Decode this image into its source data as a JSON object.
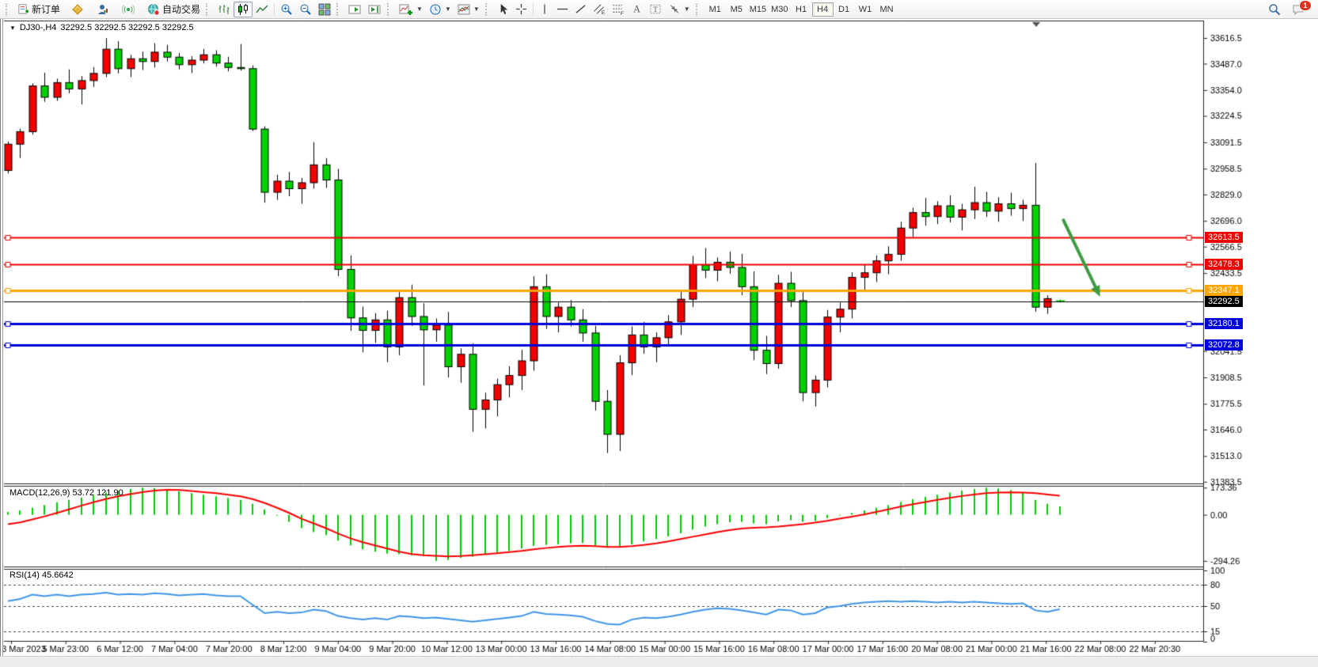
{
  "toolbar": {
    "new_order_label": "新订单",
    "autotrading_label": "自动交易",
    "timeframes": [
      "M1",
      "M5",
      "M15",
      "M30",
      "H1",
      "H4",
      "D1",
      "W1",
      "MN"
    ],
    "active_timeframe": "H4",
    "notification_count": "1"
  },
  "chart_header": {
    "symbol": "DJ30-,H4",
    "quotes": "32292.5 32292.5 32292.5 32292.5"
  },
  "indicators_text": {
    "macd_label": "MACD(12,26,9)",
    "macd_values": "53.72 121.90",
    "rsi_label": "RSI(14)",
    "rsi_value": "45.6642"
  },
  "chart_data": {
    "type": "candlestick",
    "symbol": "DJ30-",
    "timeframe": "H4",
    "bull_color": "#f40000",
    "bear_color": "#00d200",
    "current_price": 32292.5,
    "ylim": [
      31375,
      33704
    ],
    "price_ticks": [
      "33616.5",
      "33487.0",
      "33354.0",
      "33224.5",
      "33091.5",
      "32958.5",
      "32829.0",
      "32696.0",
      "32566.5",
      "32433.5",
      "32041.5",
      "31908.5",
      "31775.5",
      "31646.0",
      "31513.0",
      "31383.5"
    ],
    "x_labels": [
      "3 Mar 2023",
      "5 Mar 23:00",
      "6 Mar 12:00",
      "7 Mar 04:00",
      "7 Mar 20:00",
      "8 Mar 12:00",
      "9 Mar 04:00",
      "9 Mar 20:00",
      "10 Mar 12:00",
      "13 Mar 00:00",
      "13 Mar 16:00",
      "14 Mar 08:00",
      "15 Mar 00:00",
      "15 Mar 16:00",
      "16 Mar 08:00",
      "17 Mar 00:00",
      "17 Mar 16:00",
      "20 Mar 08:00",
      "21 Mar 00:00",
      "21 Mar 16:00",
      "22 Mar 08:00",
      "22 Mar 20:30"
    ],
    "hlines": [
      {
        "price": 32613.5,
        "label": "32613.5",
        "color": "#f00000",
        "width": 2,
        "handles": true
      },
      {
        "price": 32478.3,
        "label": "32478.3",
        "color": "#f00000",
        "width": 2,
        "handles": true
      },
      {
        "price": 32347.1,
        "label": "32347.1",
        "color": "#ffa500",
        "width": 3,
        "handles": true
      },
      {
        "price": 32292.5,
        "label": "32292.5",
        "color": "#000000",
        "width": 1,
        "handles": false
      },
      {
        "price": 32180.1,
        "label": "32180.1",
        "color": "#0000dc",
        "width": 3,
        "handles": true
      },
      {
        "price": 32072.8,
        "label": "32072.8",
        "color": "#0000dc",
        "width": 3,
        "handles": true
      }
    ],
    "annotations": {
      "arrow": {
        "from_i": 86.3,
        "from_price": 32700,
        "to_i": 89.3,
        "to_price": 32315,
        "color": "#3f9c43"
      }
    },
    "candles": [
      [
        32950,
        33095,
        32935,
        33082
      ],
      [
        33082,
        33160,
        33012,
        33145
      ],
      [
        33145,
        33388,
        33130,
        33375
      ],
      [
        33375,
        33442,
        33295,
        33318
      ],
      [
        33318,
        33412,
        33300,
        33392
      ],
      [
        33392,
        33458,
        33338,
        33360
      ],
      [
        33360,
        33425,
        33282,
        33402
      ],
      [
        33402,
        33470,
        33370,
        33438
      ],
      [
        33438,
        33616,
        33420,
        33560
      ],
      [
        33560,
        33600,
        33438,
        33462
      ],
      [
        33462,
        33532,
        33420,
        33512
      ],
      [
        33512,
        33548,
        33455,
        33498
      ],
      [
        33498,
        33590,
        33468,
        33545
      ],
      [
        33545,
        33582,
        33498,
        33520
      ],
      [
        33520,
        33542,
        33458,
        33482
      ],
      [
        33482,
        33525,
        33440,
        33505
      ],
      [
        33505,
        33562,
        33488,
        33532
      ],
      [
        33532,
        33555,
        33472,
        33490
      ],
      [
        33490,
        33522,
        33448,
        33468
      ],
      [
        33468,
        33586,
        33452,
        33462
      ],
      [
        33462,
        33478,
        33148,
        33158
      ],
      [
        33158,
        33172,
        32788,
        32840
      ],
      [
        32840,
        32928,
        32802,
        32896
      ],
      [
        32896,
        32942,
        32820,
        32858
      ],
      [
        32858,
        32912,
        32782,
        32888
      ],
      [
        32888,
        33092,
        32858,
        32978
      ],
      [
        32978,
        33012,
        32862,
        32902
      ],
      [
        32902,
        32958,
        32418,
        32452
      ],
      [
        32452,
        32522,
        32142,
        32208
      ],
      [
        32208,
        32265,
        32035,
        32145
      ],
      [
        32145,
        32232,
        32082,
        32198
      ],
      [
        32198,
        32245,
        31985,
        32062
      ],
      [
        32062,
        32348,
        32020,
        32310
      ],
      [
        32310,
        32375,
        32168,
        32215
      ],
      [
        32215,
        32282,
        31868,
        32148
      ],
      [
        32148,
        32205,
        32088,
        32172
      ],
      [
        32172,
        32238,
        31908,
        31962
      ],
      [
        31962,
        32055,
        31882,
        32025
      ],
      [
        32025,
        32080,
        31635,
        31748
      ],
      [
        31748,
        31832,
        31652,
        31795
      ],
      [
        31795,
        31902,
        31712,
        31872
      ],
      [
        31872,
        31965,
        31808,
        31918
      ],
      [
        31918,
        32048,
        31845,
        31992
      ],
      [
        31992,
        32418,
        31942,
        32365
      ],
      [
        32365,
        32428,
        32152,
        32215
      ],
      [
        32215,
        32285,
        32135,
        32262
      ],
      [
        32262,
        32298,
        32165,
        32198
      ],
      [
        32198,
        32252,
        32088,
        32132
      ],
      [
        32132,
        32168,
        31742,
        31788
      ],
      [
        31788,
        31845,
        31528,
        31622
      ],
      [
        31622,
        32020,
        31538,
        31982
      ],
      [
        31982,
        32165,
        31920,
        32122
      ],
      [
        32122,
        32188,
        32028,
        32062
      ],
      [
        32062,
        32135,
        31985,
        32108
      ],
      [
        32108,
        32222,
        32068,
        32188
      ],
      [
        32188,
        32340,
        32122,
        32302
      ],
      [
        32302,
        32520,
        32262,
        32475
      ],
      [
        32475,
        32560,
        32408,
        32448
      ],
      [
        32448,
        32512,
        32392,
        32488
      ],
      [
        32488,
        32542,
        32430,
        32462
      ],
      [
        32462,
        32530,
        32322,
        32365
      ],
      [
        32365,
        32442,
        31995,
        32045
      ],
      [
        32045,
        32118,
        31925,
        31978
      ],
      [
        31978,
        32425,
        31952,
        32382
      ],
      [
        32382,
        32440,
        32262,
        32295
      ],
      [
        32295,
        32342,
        31788,
        31832
      ],
      [
        31832,
        31918,
        31762,
        31895
      ],
      [
        31895,
        32248,
        31858,
        32212
      ],
      [
        32212,
        32285,
        32135,
        32252
      ],
      [
        32252,
        32438,
        32205,
        32412
      ],
      [
        32412,
        32478,
        32342,
        32435
      ],
      [
        32435,
        32522,
        32388,
        32495
      ],
      [
        32495,
        32568,
        32428,
        32528
      ],
      [
        32528,
        32692,
        32495,
        32660
      ],
      [
        32660,
        32762,
        32615,
        32738
      ],
      [
        32738,
        32812,
        32672,
        32718
      ],
      [
        32718,
        32795,
        32680,
        32772
      ],
      [
        32772,
        32825,
        32688,
        32715
      ],
      [
        32715,
        32782,
        32648,
        32752
      ],
      [
        32752,
        32868,
        32705,
        32788
      ],
      [
        32788,
        32842,
        32715,
        32745
      ],
      [
        32745,
        32815,
        32692,
        32782
      ],
      [
        32782,
        32838,
        32722,
        32758
      ],
      [
        32758,
        32802,
        32695,
        32775
      ],
      [
        32775,
        32988,
        32238,
        32262
      ],
      [
        32262,
        32322,
        32228,
        32305
      ],
      [
        32294,
        32300,
        32286,
        32292.5
      ]
    ],
    "macd": {
      "label": "MACD(12,26,9)",
      "values_text": "53.72 121.90",
      "ylim": [
        -330,
        185
      ],
      "scale": [
        {
          "v": 173.36,
          "t": "173.36"
        },
        {
          "v": 0,
          "t": "0.00"
        },
        {
          "v": -294.26,
          "t": "-294.26"
        }
      ],
      "hist_color": "#00cc00",
      "signal_color": "#ff0000",
      "histogram": [
        18,
        28,
        45,
        62,
        80,
        95,
        110,
        125,
        142,
        155,
        165,
        173.36,
        170,
        162,
        150,
        138,
        128,
        118,
        108,
        95,
        70,
        35,
        -5,
        -45,
        -85,
        -110,
        -130,
        -165,
        -195,
        -220,
        -235,
        -248,
        -252,
        -258,
        -262,
        -294.26,
        -288,
        -275,
        -268,
        -255,
        -242,
        -230,
        -215,
        -198,
        -192,
        -188,
        -182,
        -180,
        -195,
        -210,
        -205,
        -188,
        -170,
        -155,
        -138,
        -118,
        -95,
        -75,
        -60,
        -48,
        -45,
        -55,
        -60,
        -42,
        -35,
        -45,
        -40,
        -22,
        -5,
        12,
        28,
        45,
        62,
        82,
        100,
        115,
        128,
        142,
        155,
        165,
        173,
        168,
        158,
        140,
        95,
        70,
        53.72
      ],
      "signal": [
        -60,
        -48,
        -30,
        -10,
        12,
        35,
        58,
        80,
        100,
        118,
        132,
        145,
        155,
        160,
        158,
        152,
        145,
        138,
        128,
        118,
        100,
        75,
        45,
        12,
        -25,
        -55,
        -85,
        -120,
        -150,
        -175,
        -195,
        -215,
        -235,
        -250,
        -258,
        -262,
        -265,
        -263,
        -258,
        -252,
        -245,
        -238,
        -230,
        -220,
        -212,
        -205,
        -200,
        -198,
        -200,
        -205,
        -205,
        -200,
        -192,
        -182,
        -170,
        -155,
        -140,
        -125,
        -110,
        -98,
        -88,
        -82,
        -80,
        -75,
        -68,
        -60,
        -50,
        -38,
        -25,
        -12,
        2,
        18,
        35,
        52,
        68,
        82,
        95,
        108,
        120,
        130,
        138,
        142,
        143,
        142,
        138,
        130,
        121.9
      ]
    },
    "rsi": {
      "label": "RSI(14)",
      "value_text": "45.6642",
      "line_color": "#3e96e8",
      "levels": [
        80,
        50,
        15
      ],
      "scale": [
        {
          "v": 100,
          "t": "100"
        },
        {
          "v": 80,
          "t": "80"
        },
        {
          "v": 50,
          "t": "50"
        },
        {
          "v": 15,
          "t": "15"
        },
        {
          "v": 0,
          "t": "0"
        }
      ],
      "values": [
        57,
        60,
        66,
        64,
        66,
        64,
        66,
        67,
        69,
        66,
        67,
        66,
        68,
        67,
        65,
        66,
        67,
        65,
        64,
        64,
        52,
        40,
        42,
        40,
        41,
        45,
        43,
        36,
        33,
        31,
        33,
        31,
        36,
        35,
        33,
        34,
        32,
        30,
        28,
        30,
        32,
        34,
        36,
        42,
        39,
        38,
        37,
        35,
        29,
        25,
        24,
        31,
        34,
        33,
        35,
        38,
        42,
        45,
        47,
        46,
        44,
        41,
        38,
        45,
        44,
        38,
        40,
        48,
        50,
        53,
        55,
        56,
        57,
        56,
        57,
        56,
        55,
        56,
        55,
        56,
        55,
        54,
        53,
        54,
        44,
        42,
        45.66
      ]
    }
  }
}
